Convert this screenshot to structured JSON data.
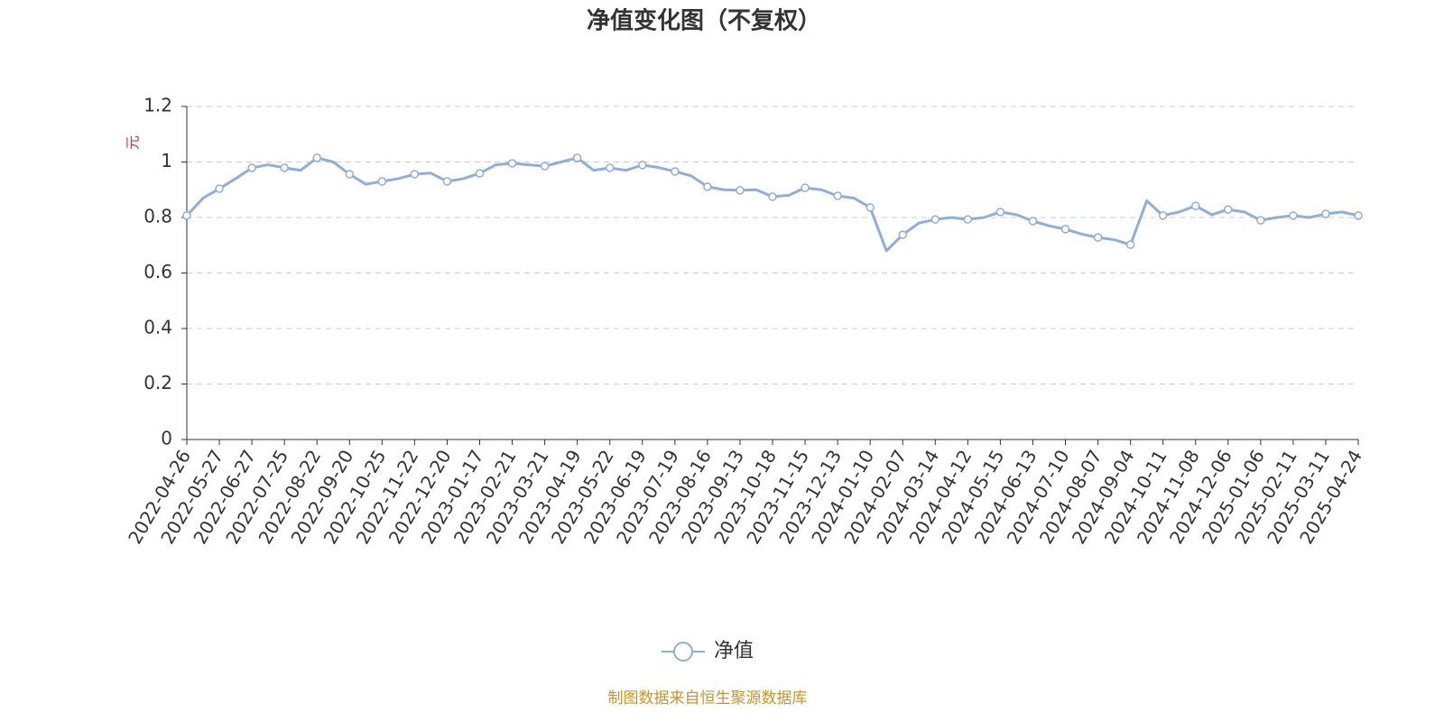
{
  "chart_data": {
    "type": "line",
    "title": "净值变化图（不复权）",
    "y_label": "元",
    "source": "制图数据来自恒生聚源数据库",
    "categories": [
      "2022-04-26",
      null,
      "2022-05-27",
      null,
      "2022-06-27",
      null,
      "2022-07-25",
      null,
      "2022-08-22",
      null,
      "2022-09-20",
      null,
      "2022-10-25",
      null,
      "2022-11-22",
      null,
      "2022-12-20",
      null,
      "2023-01-17",
      null,
      "2023-02-21",
      null,
      "2023-03-21",
      null,
      "2023-04-19",
      null,
      "2023-05-22",
      null,
      "2023-06-19",
      null,
      "2023-07-19",
      null,
      "2023-08-16",
      null,
      "2023-09-13",
      null,
      "2023-10-18",
      null,
      "2023-11-15",
      null,
      "2023-12-13",
      null,
      "2024-01-10",
      null,
      "2024-02-07",
      null,
      "2024-03-14",
      null,
      "2024-04-12",
      null,
      "2024-05-15",
      null,
      "2024-06-13",
      null,
      "2024-07-10",
      null,
      "2024-08-07",
      null,
      "2024-09-04",
      null,
      "2024-10-11",
      null,
      "2024-11-08",
      null,
      "2024-12-06",
      null,
      "2025-01-06",
      null,
      "2025-02-11",
      null,
      "2025-03-11",
      null,
      "2025-04-24"
    ],
    "series": [
      {
        "name": "净值",
        "color": "#8eaedb",
        "values": [
          0.807,
          0.87,
          0.904,
          0.94,
          0.979,
          0.99,
          0.979,
          0.97,
          1.015,
          1.0,
          0.956,
          0.92,
          0.93,
          0.94,
          0.956,
          0.96,
          0.93,
          0.94,
          0.959,
          0.99,
          0.995,
          0.99,
          0.985,
          1.0,
          1.015,
          0.97,
          0.979,
          0.97,
          0.989,
          0.98,
          0.966,
          0.95,
          0.911,
          0.9,
          0.898,
          0.9,
          0.875,
          0.88,
          0.907,
          0.9,
          0.878,
          0.87,
          0.836,
          0.68,
          0.738,
          0.78,
          0.793,
          0.8,
          0.793,
          0.8,
          0.82,
          0.81,
          0.787,
          0.77,
          0.758,
          0.74,
          0.728,
          0.72,
          0.702,
          0.86,
          0.807,
          0.82,
          0.842,
          0.81,
          0.829,
          0.82,
          0.79,
          0.8,
          0.807,
          0.8,
          0.813,
          0.82,
          0.807
        ]
      }
    ],
    "ylim": [
      0,
      1.2
    ],
    "yticks": [
      0,
      0.2,
      0.4,
      0.6,
      0.8,
      1,
      1.2
    ],
    "grid": true,
    "legend": "bottom"
  }
}
